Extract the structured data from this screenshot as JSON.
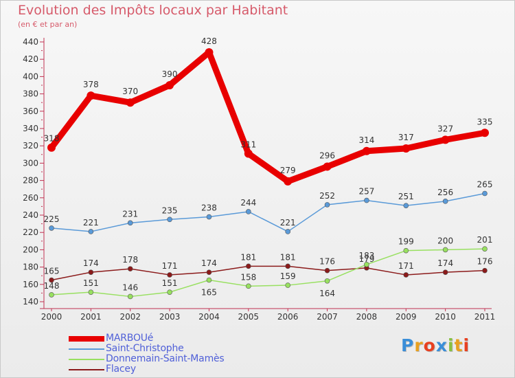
{
  "header": {
    "title": "Evolution des Impôts locaux par Habitant",
    "subtitle": "(en € et par an)"
  },
  "logo": {
    "text": "Proxiti",
    "letter_colors": [
      "#3a8ed8",
      "#e8a020",
      "#e84020",
      "#3a8ed8",
      "#88c040",
      "#e8a020",
      "#e84020"
    ]
  },
  "chart_data": {
    "type": "line",
    "x": [
      "2000",
      "2001",
      "2002",
      "2003",
      "2004",
      "2005",
      "2006",
      "2007",
      "2008",
      "2009",
      "2010",
      "2011"
    ],
    "ylim": [
      140,
      440
    ],
    "yticks": [
      140,
      160,
      180,
      200,
      220,
      240,
      260,
      280,
      300,
      320,
      340,
      360,
      380,
      400,
      420,
      440
    ],
    "grid": false,
    "legend_position": "bottom-left",
    "series": [
      {
        "name": "MARBOUé",
        "color": "#e80000",
        "values": [
          318,
          378,
          370,
          390,
          428,
          311,
          279,
          296,
          314,
          317,
          327,
          335
        ],
        "label_offsets": [
          [
            0,
            -9
          ],
          [
            0,
            -12
          ],
          [
            0,
            -12
          ],
          [
            0,
            -12
          ],
          [
            0,
            -12
          ],
          [
            0,
            -9
          ],
          [
            0,
            -12
          ],
          [
            0,
            -12
          ],
          [
            0,
            -12
          ],
          [
            0,
            -12
          ],
          [
            0,
            -12
          ],
          [
            0,
            -12
          ]
        ]
      },
      {
        "name": "Saint-Christophe",
        "color": "#5a9ad8",
        "values": [
          225,
          221,
          231,
          235,
          238,
          244,
          221,
          252,
          257,
          251,
          256,
          265
        ],
        "label_offsets": [
          [
            0,
            -9
          ],
          [
            0,
            -9
          ],
          [
            0,
            -9
          ],
          [
            0,
            -9
          ],
          [
            0,
            -9
          ],
          [
            0,
            -9
          ],
          [
            0,
            -9
          ],
          [
            0,
            -9
          ],
          [
            0,
            -9
          ],
          [
            0,
            -9
          ],
          [
            0,
            -9
          ],
          [
            0,
            -9
          ]
        ]
      },
      {
        "name": "Donnemain-Saint-Mamès",
        "color": "#98e060",
        "values": [
          148,
          151,
          146,
          151,
          165,
          158,
          159,
          164,
          183,
          199,
          200,
          201
        ],
        "label_offsets": [
          [
            0,
            -9
          ],
          [
            0,
            -9
          ],
          [
            0,
            -9
          ],
          [
            0,
            -9
          ],
          [
            0,
            22
          ],
          [
            0,
            -9
          ],
          [
            0,
            -9
          ],
          [
            0,
            22
          ],
          [
            0,
            -9
          ],
          [
            0,
            -9
          ],
          [
            0,
            -9
          ],
          [
            0,
            -9
          ]
        ]
      },
      {
        "name": "Flacey",
        "color": "#8b1a1a",
        "values": [
          165,
          174,
          178,
          171,
          174,
          181,
          181,
          176,
          179,
          171,
          174,
          176
        ],
        "label_offsets": [
          [
            0,
            -9
          ],
          [
            0,
            -9
          ],
          [
            0,
            -9
          ],
          [
            0,
            -9
          ],
          [
            0,
            -9
          ],
          [
            0,
            -9
          ],
          [
            0,
            -9
          ],
          [
            0,
            -9
          ],
          [
            0,
            -9
          ],
          [
            0,
            -9
          ],
          [
            0,
            -9
          ],
          [
            0,
            -9
          ]
        ]
      }
    ]
  }
}
